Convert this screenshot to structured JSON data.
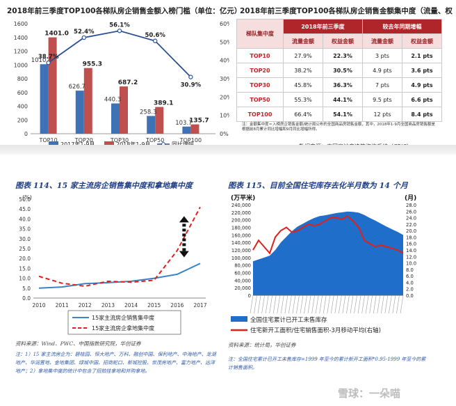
{
  "top_left": {
    "title": "2018年前三季度TOP100各梯队房企销售金额入榜门槛（单位：亿元）",
    "legend": [
      "2017年1-9月",
      "2018年1-9月",
      "同比增幅"
    ],
    "colors": {
      "bar2017": "#3e72b5",
      "bar2018": "#c0504d",
      "line": "#2a4e94"
    }
  },
  "top_right": {
    "title": "2018年前三季度TOP100各梯队房企销售金额集中度（流量、权",
    "head_group": "梯队集中度",
    "head_2018": "2018年前三季度",
    "head_yoy": "较去年同期增幅",
    "sub": [
      "流量金额",
      "权益金额",
      "流量金额",
      "权益金额"
    ],
    "rows": [
      {
        "label": "TOP10",
        "c1": "27.9%",
        "c2": "22.3%",
        "c3": "3 pts",
        "c4": "2.1 pts"
      },
      {
        "label": "TOP20",
        "c1": "38.2%",
        "c2": "30.5%",
        "c3": "4.9 pts",
        "c4": "3.6 pts"
      },
      {
        "label": "TOP30",
        "c1": "45.8%",
        "c2": "36.3%",
        "c3": "7 pts",
        "c4": "4.9 pts"
      },
      {
        "label": "TOP50",
        "c1": "55.3%",
        "c2": "44.1%",
        "c3": "9.5 pts",
        "c4": "6.6 pts"
      },
      {
        "label": "TOP100",
        "c1": "66.4%",
        "c2": "54.1%",
        "c3": "12 pts",
        "c4": "8.4 pts"
      }
    ],
    "note": "注：金额集中度＝入榜房企销售金额/统计局公布的全国商品房销售金额，其中，2018年1-9月全国商品房销售额是根据前8月累计同比增幅和9月同比增幅所得。",
    "source": "数据来源：中国房地产决策咨询系统（CRIC）"
  },
  "bottom_left": {
    "title": "图表 114、15 家主流房企销售集中度和拿地集中度",
    "unit": "(%)",
    "legend": [
      "15家主流房企销售集中度",
      "15家主流房企拿地集中度"
    ],
    "source": "资料来源：Wind、PWC、中国指数研究院，华创证券",
    "note": "注：1）15 家主流房企为：碧桂园、恒大地产、万科、融创中国、保利地产、中海地产、龙湖地产、华润置地、金地集团、绿城中国、招商蛇口、新城控股、世茂房地产、富力地产、远洋地产；2）拿地集中度的统计中包含了招拍挂拿地和并购拿地。"
  },
  "bottom_right": {
    "title": "图表 115、目前全国住宅库存去化半月数为 14 个月",
    "unit_left": "(万平米)",
    "unit_right": "(月)",
    "legend": [
      "全国住宅累计已开工未售库存",
      "住宅新开工面积/住宅销售面积-3月移动平均(右轴)"
    ],
    "source": "资料来源：统计局，华创证券",
    "note": "注：全国住宅累计已开工未售库存=1999 年至今的累计新开工面积*0.95-1999 年至今的累计销售面积。"
  },
  "watermark": "雪球：一朵喵",
  "chart_data": [
    {
      "type": "bar",
      "title": "2018年前三季度TOP100各梯队房企销售金额入榜门槛（单位：亿元）",
      "categories": [
        "TOP10",
        "TOP20",
        "TOP30",
        "TOP50",
        "TOP100"
      ],
      "series": [
        {
          "name": "2017年1-9月",
          "values": [
            1010.3,
            626.7,
            440.3,
            258.3,
            103.7
          ]
        },
        {
          "name": "2018年1-9月",
          "values": [
            1401.0,
            955.3,
            687.2,
            389.1,
            135.7
          ]
        },
        {
          "name": "同比增幅",
          "type": "line",
          "axis": "right",
          "values": [
            38.7,
            52.4,
            56.1,
            50.6,
            30.9
          ],
          "labels": [
            "38.7%",
            "52.4%",
            "56.1%",
            "50.6%",
            "30.9%"
          ]
        }
      ],
      "ylim": [
        0,
        1600
      ],
      "yticks": [
        "0",
        "200",
        "400",
        "600",
        "800",
        "1000",
        "1200",
        "1400",
        "1600"
      ],
      "y2lim": [
        0,
        60
      ],
      "y2ticks": [
        "0%",
        "10%",
        "20%",
        "30%",
        "40%",
        "50%",
        "60%"
      ],
      "legend_position": "bottom"
    },
    {
      "type": "line",
      "title": "图表 114、15 家主流房企销售集中度和拿地集中度",
      "ylabel": "(%)",
      "x": [
        "2010",
        "2011",
        "2012",
        "2013",
        "2014",
        "2015",
        "2016",
        "2017"
      ],
      "series": [
        {
          "name": "15家主流房企销售集中度",
          "values": [
            5.0,
            5.6,
            7.3,
            7.8,
            8.5,
            10.0,
            12.0,
            17.5
          ]
        },
        {
          "name": "15家主流房企拿地集中度",
          "values": [
            11.0,
            7.5,
            6.0,
            8.5,
            8.0,
            9.0,
            24.0,
            46.0
          ]
        }
      ],
      "ylim": [
        0,
        50
      ],
      "yticks": [
        "0.0",
        "5.0",
        "10.0",
        "15.0",
        "20.0",
        "25.0",
        "30.0",
        "35.0",
        "40.0",
        "45.0",
        "50.0"
      ],
      "legend_position": "bottom"
    },
    {
      "type": "area",
      "title": "图表 115、目前全国住宅库存去化半月数为 14 个月",
      "ylabel": "(万平米)",
      "y2label": "(月)",
      "series": [
        {
          "name": "全国住宅累计已开工未售库存",
          "axis": "left",
          "values": [
            90000,
            95000,
            100000,
            105000,
            120000,
            140000,
            155000,
            170000,
            182000,
            190000,
            198000,
            205000,
            210000,
            212000,
            215000,
            218000,
            220000,
            222000,
            221000,
            219000,
            213000,
            205000,
            198000,
            190000,
            182000,
            175000,
            168000,
            160000
          ]
        },
        {
          "name": "住宅新开工面积/住宅销售面积-3月移动平均(右轴)",
          "axis": "right",
          "values": [
            14.0,
            17.0,
            15.0,
            13.0,
            18.0,
            20.0,
            21.0,
            19.5,
            20.0,
            21.0,
            22.0,
            21.5,
            22.0,
            23.0,
            24.0,
            24.0,
            23.5,
            24.5,
            23.0,
            21.0,
            17.0,
            16.0,
            15.0,
            15.5,
            15.0,
            14.5,
            14.0,
            13.0
          ]
        }
      ],
      "ylim": [
        0,
        240000
      ],
      "yticks": [
        "0",
        "20,000",
        "40,000",
        "60,000",
        "80,000",
        "100,000",
        "120,000",
        "140,000",
        "160,000",
        "180,000",
        "200,000",
        "220,000",
        "240,000"
      ],
      "y2lim": [
        0,
        28
      ],
      "y2ticks": [
        "0.0",
        "2.0",
        "4.0",
        "6.0",
        "8.0",
        "10.0",
        "12.0",
        "14.0",
        "16.0",
        "18.0",
        "20.0",
        "22.0",
        "24.0",
        "26.0",
        "28.0"
      ],
      "legend_position": "bottom"
    }
  ]
}
